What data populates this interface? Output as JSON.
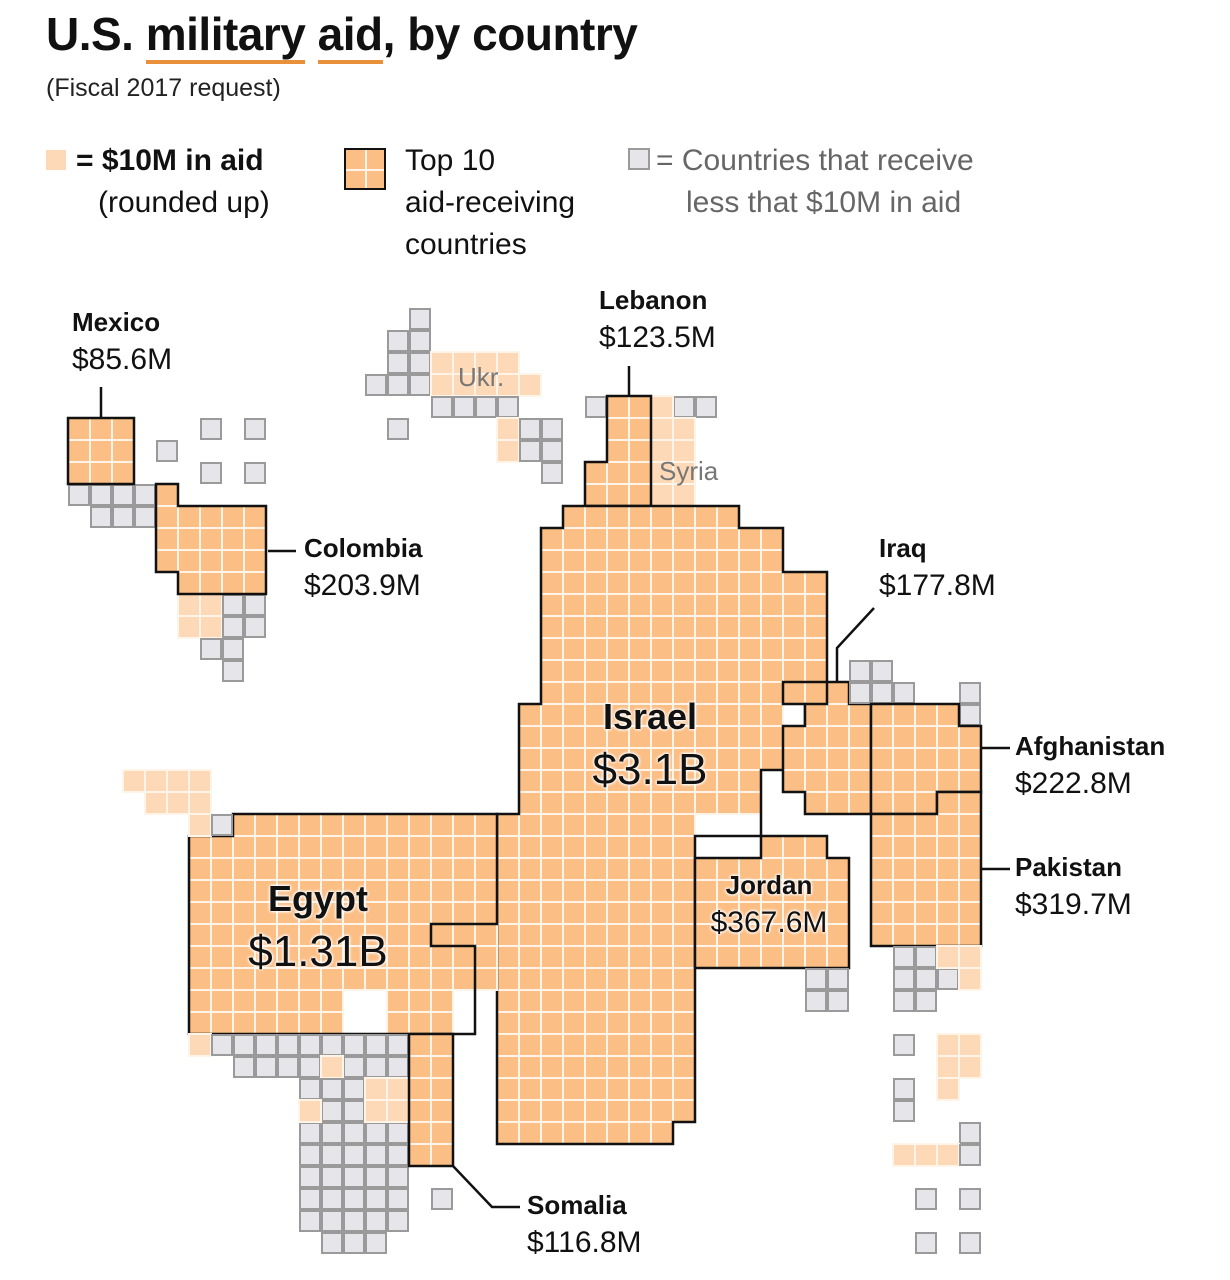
{
  "title": {
    "pre": "U.S. ",
    "w1": "military",
    "space": " ",
    "w2": "aid",
    "post": ", by country"
  },
  "subtitle": "(Fiscal 2017 request)",
  "legend": {
    "unit_main": "= $10M in aid",
    "unit_sub": "(rounded up)",
    "top10_line1": "Top 10",
    "top10_line2": "aid-receiving",
    "top10_line3": "countries",
    "small_line1": "= Countries that receive",
    "small_line2": "less that $10M in aid"
  },
  "colors": {
    "top": "#fbbf86",
    "other": "#fdd9b8",
    "small": "#e5e5ea",
    "small_border": "#9a9a9a",
    "outline": "#111111",
    "accent": "#e8913a"
  },
  "regions": {
    "ukr": "Ukr.",
    "syria": "Syria"
  },
  "chart_data": {
    "type": "cartogram",
    "unit": "1 square = $10M in aid (rounded up)",
    "title": "U.S. military aid, by country",
    "subtitle": "(Fiscal 2017 request)",
    "countries": [
      {
        "name": "Israel",
        "value_label": "$3.1B",
        "value_musd": 3100
      },
      {
        "name": "Egypt",
        "value_label": "$1.31B",
        "value_musd": 1310
      },
      {
        "name": "Jordan",
        "value_label": "$367.6M",
        "value_musd": 367.6
      },
      {
        "name": "Pakistan",
        "value_label": "$319.7M",
        "value_musd": 319.7
      },
      {
        "name": "Afghanistan",
        "value_label": "$222.8M",
        "value_musd": 222.8
      },
      {
        "name": "Colombia",
        "value_label": "$203.9M",
        "value_musd": 203.9
      },
      {
        "name": "Iraq",
        "value_label": "$177.8M",
        "value_musd": 177.8
      },
      {
        "name": "Lebanon",
        "value_label": "$123.5M",
        "value_musd": 123.5
      },
      {
        "name": "Somalia",
        "value_label": "$116.8M",
        "value_musd": 116.8
      },
      {
        "name": "Mexico",
        "value_label": "$85.6M",
        "value_musd": 85.6
      }
    ]
  }
}
